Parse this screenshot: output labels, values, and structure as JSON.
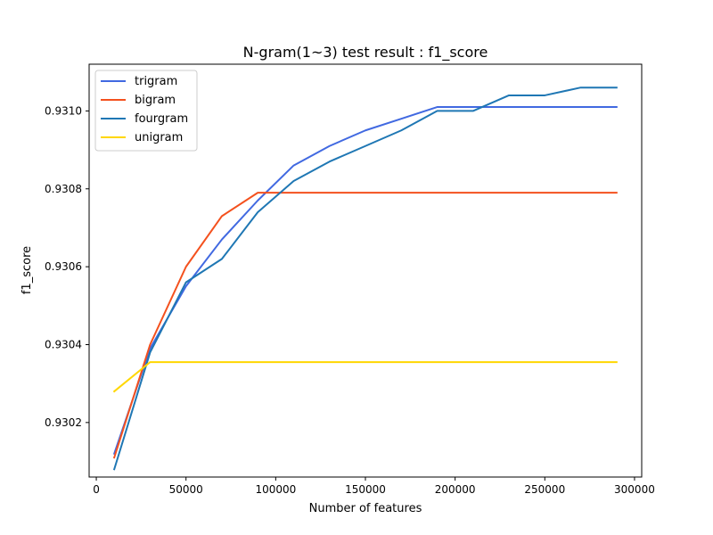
{
  "chart_data": {
    "type": "line",
    "title": "N-gram(1~3) test result : f1_score",
    "xlabel": "Number of features",
    "ylabel": "f1_score",
    "xlim": [
      -4000,
      304000
    ],
    "ylim": [
      0.93006,
      0.93112
    ],
    "xticks": [
      0,
      50000,
      100000,
      150000,
      200000,
      250000,
      300000
    ],
    "yticks": [
      0.9302,
      0.9304,
      0.9306,
      0.9308,
      0.931
    ],
    "xtick_labels": [
      "0",
      "50000",
      "100000",
      "150000",
      "200000",
      "250000",
      "300000"
    ],
    "ytick_labels": [
      "0.9302",
      "0.9304",
      "0.9306",
      "0.9308",
      "0.9310"
    ],
    "grid": false,
    "legend_position": "top-left",
    "series": [
      {
        "name": "trigram",
        "color": "#4169e1",
        "x": [
          10000,
          30000,
          50000,
          70000,
          90000,
          110000,
          130000,
          150000,
          170000,
          190000,
          210000,
          230000,
          250000,
          270000,
          290000
        ],
        "y": [
          0.93012,
          0.93039,
          0.93055,
          0.93067,
          0.93077,
          0.93086,
          0.93091,
          0.93095,
          0.93098,
          0.93101,
          0.93101,
          0.93101,
          0.93101,
          0.93101,
          0.93101
        ]
      },
      {
        "name": "bigram",
        "color": "#f4511e",
        "x": [
          10000,
          30000,
          50000,
          70000,
          90000,
          110000,
          130000,
          150000,
          170000,
          190000,
          210000,
          230000,
          250000,
          270000,
          290000
        ],
        "y": [
          0.93011,
          0.9304,
          0.9306,
          0.93073,
          0.93079,
          0.93079,
          0.93079,
          0.93079,
          0.93079,
          0.93079,
          0.93079,
          0.93079,
          0.93079,
          0.93079,
          0.93079
        ]
      },
      {
        "name": "fourgram",
        "color": "#1f77b4",
        "x": [
          10000,
          30000,
          50000,
          70000,
          90000,
          110000,
          130000,
          150000,
          170000,
          190000,
          210000,
          230000,
          250000,
          270000,
          290000
        ],
        "y": [
          0.93008,
          0.93038,
          0.93056,
          0.93062,
          0.93074,
          0.93082,
          0.93087,
          0.93091,
          0.93095,
          0.931,
          0.931,
          0.93104,
          0.93104,
          0.93106,
          0.93106
        ]
      },
      {
        "name": "unigram",
        "color": "#ffd700",
        "x": [
          10000,
          30000,
          50000,
          70000,
          90000,
          110000,
          130000,
          150000,
          170000,
          190000,
          210000,
          230000,
          250000,
          270000,
          290000
        ],
        "y": [
          0.93028,
          0.930355,
          0.930355,
          0.930355,
          0.930355,
          0.930355,
          0.930355,
          0.930355,
          0.930355,
          0.930355,
          0.930355,
          0.930355,
          0.930355,
          0.930355,
          0.930355
        ]
      }
    ]
  }
}
